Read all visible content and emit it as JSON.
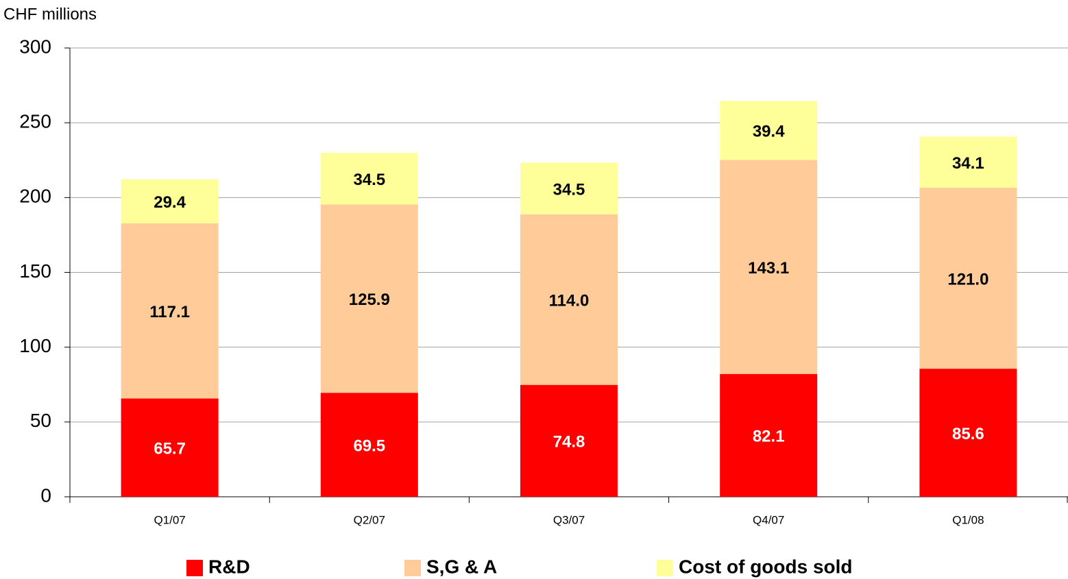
{
  "chart_data": {
    "type": "stacked_bar",
    "y_label": "CHF millions",
    "categories": [
      "Q1/07",
      "Q2/07",
      "Q3/07",
      "Q4/07",
      "Q1/08"
    ],
    "series": [
      {
        "name": "R&D",
        "color": "#ff0000",
        "label_color": "#ffffff",
        "values": [
          65.7,
          69.5,
          74.8,
          82.1,
          85.6
        ],
        "value_labels": [
          "65.7",
          "69.5",
          "74.8",
          "82.1",
          "85.6"
        ]
      },
      {
        "name": "S,G & A",
        "color": "#ffcc99",
        "label_color": "#000000",
        "values": [
          117.1,
          125.9,
          114.0,
          143.1,
          121.0
        ],
        "value_labels": [
          "117.1",
          "125.9",
          "114.0",
          "143.1",
          "121.0"
        ]
      },
      {
        "name": "Cost of goods sold",
        "color": "#ffff99",
        "label_color": "#000000",
        "values": [
          29.4,
          34.5,
          34.5,
          39.4,
          34.1
        ],
        "value_labels": [
          "29.4",
          "34.5",
          "34.5",
          "39.4",
          "34.1"
        ]
      }
    ],
    "ylim": [
      0,
      300
    ],
    "yticks": [
      0,
      50,
      100,
      150,
      200,
      250,
      300
    ],
    "grid": true,
    "legend": "bottom"
  }
}
